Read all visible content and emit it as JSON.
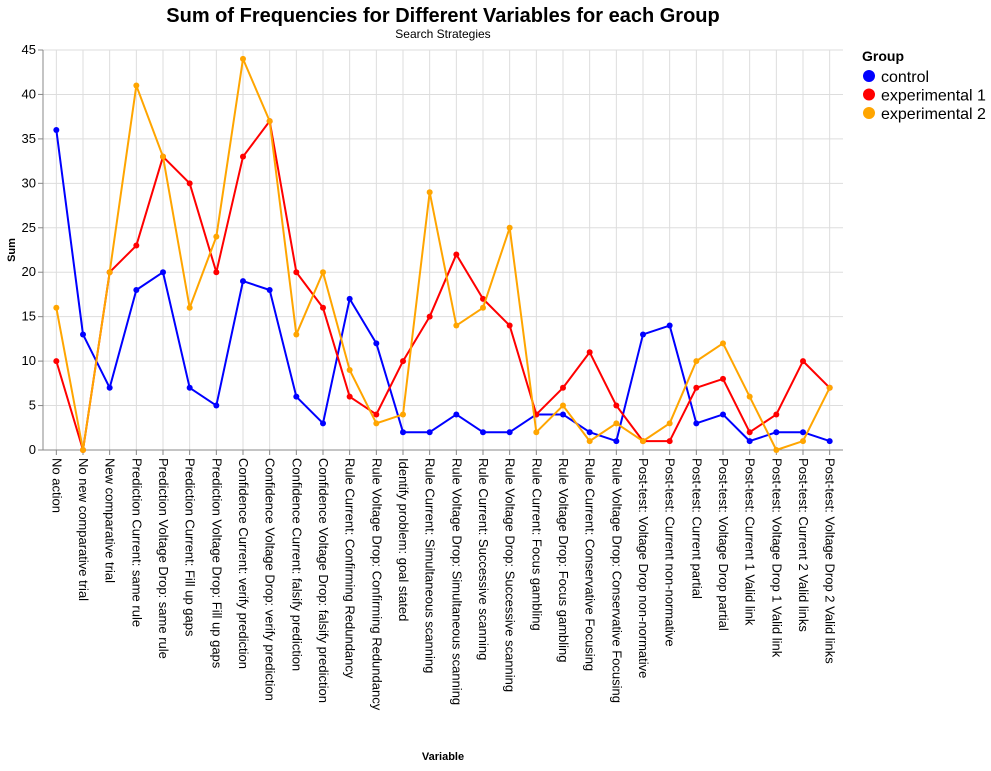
{
  "chart_data": {
    "type": "line",
    "title": "Sum of Frequencies for Different Variables for each Group",
    "subtitle": "Search Strategies",
    "xlabel": "Variable",
    "ylabel": "Sum",
    "ylim": [
      0,
      45
    ],
    "yticks": [
      0,
      5,
      10,
      15,
      20,
      25,
      30,
      35,
      40,
      45
    ],
    "grid": true,
    "legend": {
      "title": "Group",
      "position": "right"
    },
    "categories": [
      "No action",
      "No new comparative trial",
      "New comparative trial",
      "Prediction Current: same rule",
      "Prediction Voltage Drop: same rule",
      "Prediction Current: Fill up gaps",
      "Prediction Voltage Drop: Fill up gaps",
      "Confidence Current: verify prediction",
      "Confidence Voltage Drop: verify prediction",
      "Confidence Current: falsify prediction",
      "Confidence Voltage Drop: falsify prediction",
      "Rule Current: Confirming Redundancy",
      "Rule Voltage Drop: Confirming Redundancy",
      "Identify problem: goal stated",
      "Rule Current: Simultaneous scanning",
      "Rule Voltage Drop: Simultaneous scanning",
      "Rule Current: Successive scanning",
      "Rule Voltage Drop: Successive scanning",
      "Rule Current: Focus gambling",
      "Rule Voltage Drop: Focus gambling",
      "Rule Current: Conservative Focusing",
      "Rule Voltage Drop: Conservative Focusing",
      "Post-test: Voltage Drop non-normative",
      "Post-test: Current non-normative",
      "Post-test: Current partial",
      "Post-test: Voltage Drop partial",
      "Post-test: Current 1 Valid link",
      "Post-test: Voltage Drop 1 Valid link",
      "Post-test: Current 2 Valid links",
      "Post-test: Voltage Drop 2 Valid links"
    ],
    "series": [
      {
        "name": "control",
        "color": "#0000ff",
        "values": [
          36,
          13,
          7,
          18,
          20,
          7,
          5,
          19,
          18,
          6,
          3,
          17,
          12,
          2,
          2,
          4,
          2,
          2,
          4,
          4,
          2,
          1,
          13,
          14,
          3,
          4,
          1,
          2,
          2,
          1
        ]
      },
      {
        "name": "experimental 1",
        "color": "#ff0000",
        "values": [
          10,
          0,
          20,
          23,
          33,
          30,
          20,
          33,
          37,
          20,
          16,
          6,
          4,
          10,
          15,
          22,
          17,
          14,
          4,
          7,
          11,
          5,
          1,
          1,
          7,
          8,
          2,
          4,
          10,
          7
        ]
      },
      {
        "name": "experimental 2",
        "color": "#ffa500",
        "values": [
          16,
          0,
          20,
          41,
          33,
          16,
          24,
          44,
          37,
          13,
          20,
          9,
          3,
          4,
          29,
          14,
          16,
          25,
          2,
          5,
          1,
          3,
          1,
          3,
          10,
          12,
          6,
          0,
          1,
          7
        ]
      }
    ]
  }
}
